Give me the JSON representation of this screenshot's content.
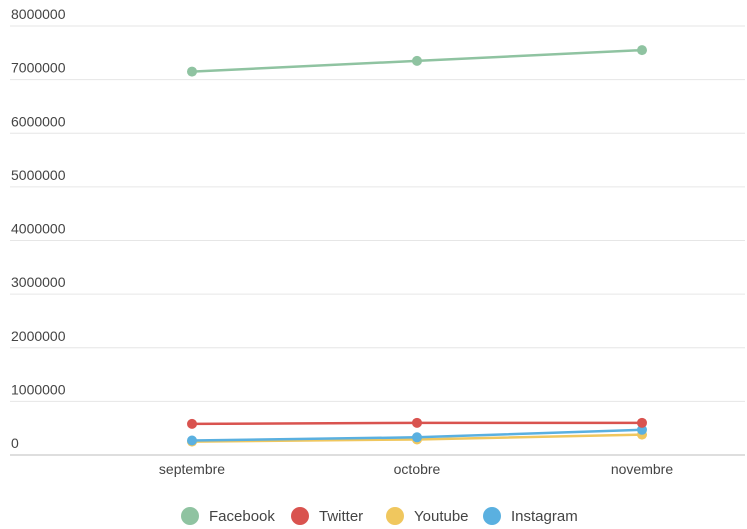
{
  "chart_data": {
    "type": "line",
    "title": "",
    "xlabel": "",
    "ylabel": "",
    "categories": [
      "septembre",
      "octobre",
      "novembre"
    ],
    "ylim": [
      0,
      8000000
    ],
    "yticks": [
      0,
      1000000,
      2000000,
      3000000,
      4000000,
      5000000,
      6000000,
      7000000,
      8000000
    ],
    "grid": true,
    "legend_position": "bottom",
    "series": [
      {
        "name": "Facebook",
        "color": "#8fc3a1",
        "values": [
          7150000,
          7350000,
          7550000
        ]
      },
      {
        "name": "Twitter",
        "color": "#d9534f",
        "values": [
          580000,
          600000,
          600000
        ]
      },
      {
        "name": "Youtube",
        "color": "#f0c75e",
        "values": [
          250000,
          290000,
          380000
        ]
      },
      {
        "name": "Instagram",
        "color": "#5ab0e0",
        "values": [
          270000,
          330000,
          470000
        ]
      }
    ]
  }
}
